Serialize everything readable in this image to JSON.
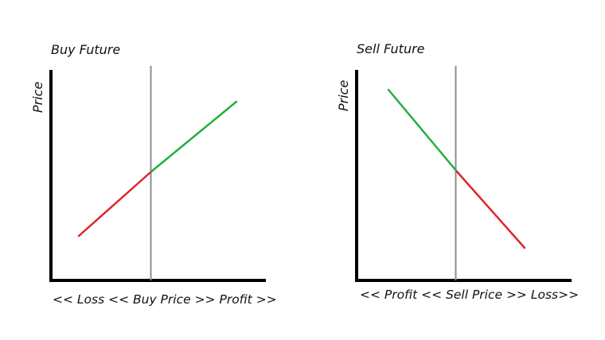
{
  "colors": {
    "axis": "#000000",
    "reference_line": "#8c8c8c",
    "profit": "#22b03b",
    "loss": "#e0242c",
    "text": "#111111"
  },
  "panels": [
    {
      "title": "Buy Future",
      "y_label": "Price",
      "x_label": "<< Loss << Buy Price >> Profit >>",
      "segments": [
        {
          "name": "loss-segment",
          "color_key": "loss"
        },
        {
          "name": "profit-segment",
          "color_key": "profit"
        }
      ]
    },
    {
      "title": "Sell Future",
      "y_label": "Price",
      "x_label": "<< Profit << Sell Price >> Loss>>",
      "segments": [
        {
          "name": "profit-segment",
          "color_key": "profit"
        },
        {
          "name": "loss-segment",
          "color_key": "loss"
        }
      ]
    }
  ]
}
